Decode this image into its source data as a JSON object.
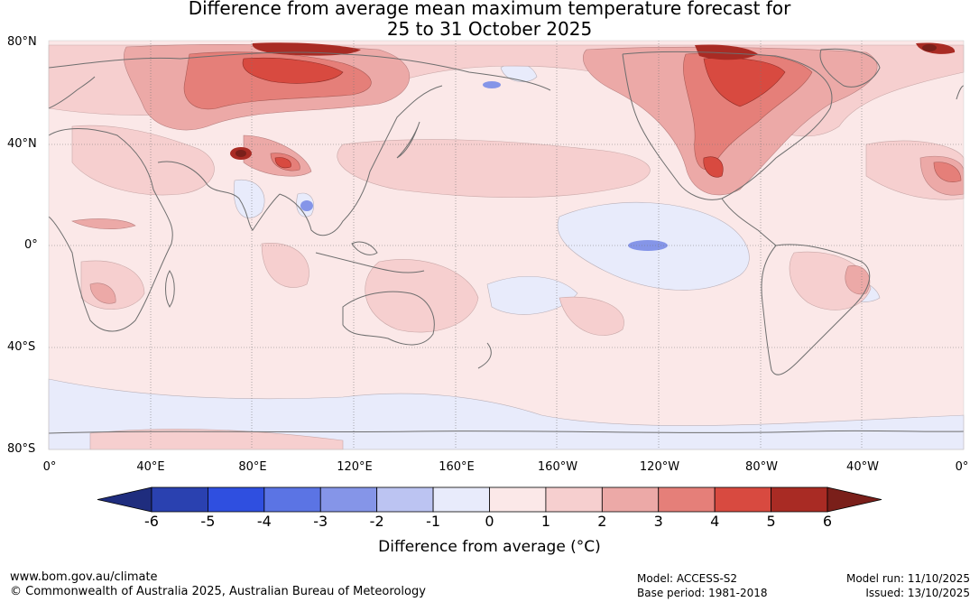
{
  "title_line1": "Difference from average mean maximum temperature forecast for",
  "title_line2": "25 to 31 October 2025",
  "lat_labels": [
    "80°N",
    "40°N",
    "0°",
    "40°S",
    "80°S"
  ],
  "lon_labels": [
    "0°",
    "40°E",
    "80°E",
    "120°E",
    "160°E",
    "160°W",
    "120°W",
    "80°W",
    "40°W",
    "0°"
  ],
  "colorbar": {
    "ticks": [
      "-6",
      "-5",
      "-4",
      "-3",
      "-2",
      "-1",
      "0",
      "1",
      "2",
      "3",
      "4",
      "5",
      "6"
    ],
    "colors": [
      "#1f2d7e",
      "#2a41b0",
      "#2f4fe0",
      "#5b74e4",
      "#8595e8",
      "#bcc4f2",
      "#e8ebfb",
      "#fbe8e8",
      "#f6cfcf",
      "#eca9a7",
      "#e57f79",
      "#d84a40",
      "#a92b24",
      "#7a1f1a"
    ],
    "title": "Difference from average (°C)"
  },
  "footer": {
    "website": "www.bom.gov.au/climate",
    "copyright": "© Commonwealth of Australia 2025, Australian Bureau of Meteorology",
    "model": "Model: ACCESS-S2",
    "base_period": "Base period: 1981-2018",
    "model_run": "Model run: 11/10/2025",
    "issued": "Issued: 13/10/2025"
  }
}
